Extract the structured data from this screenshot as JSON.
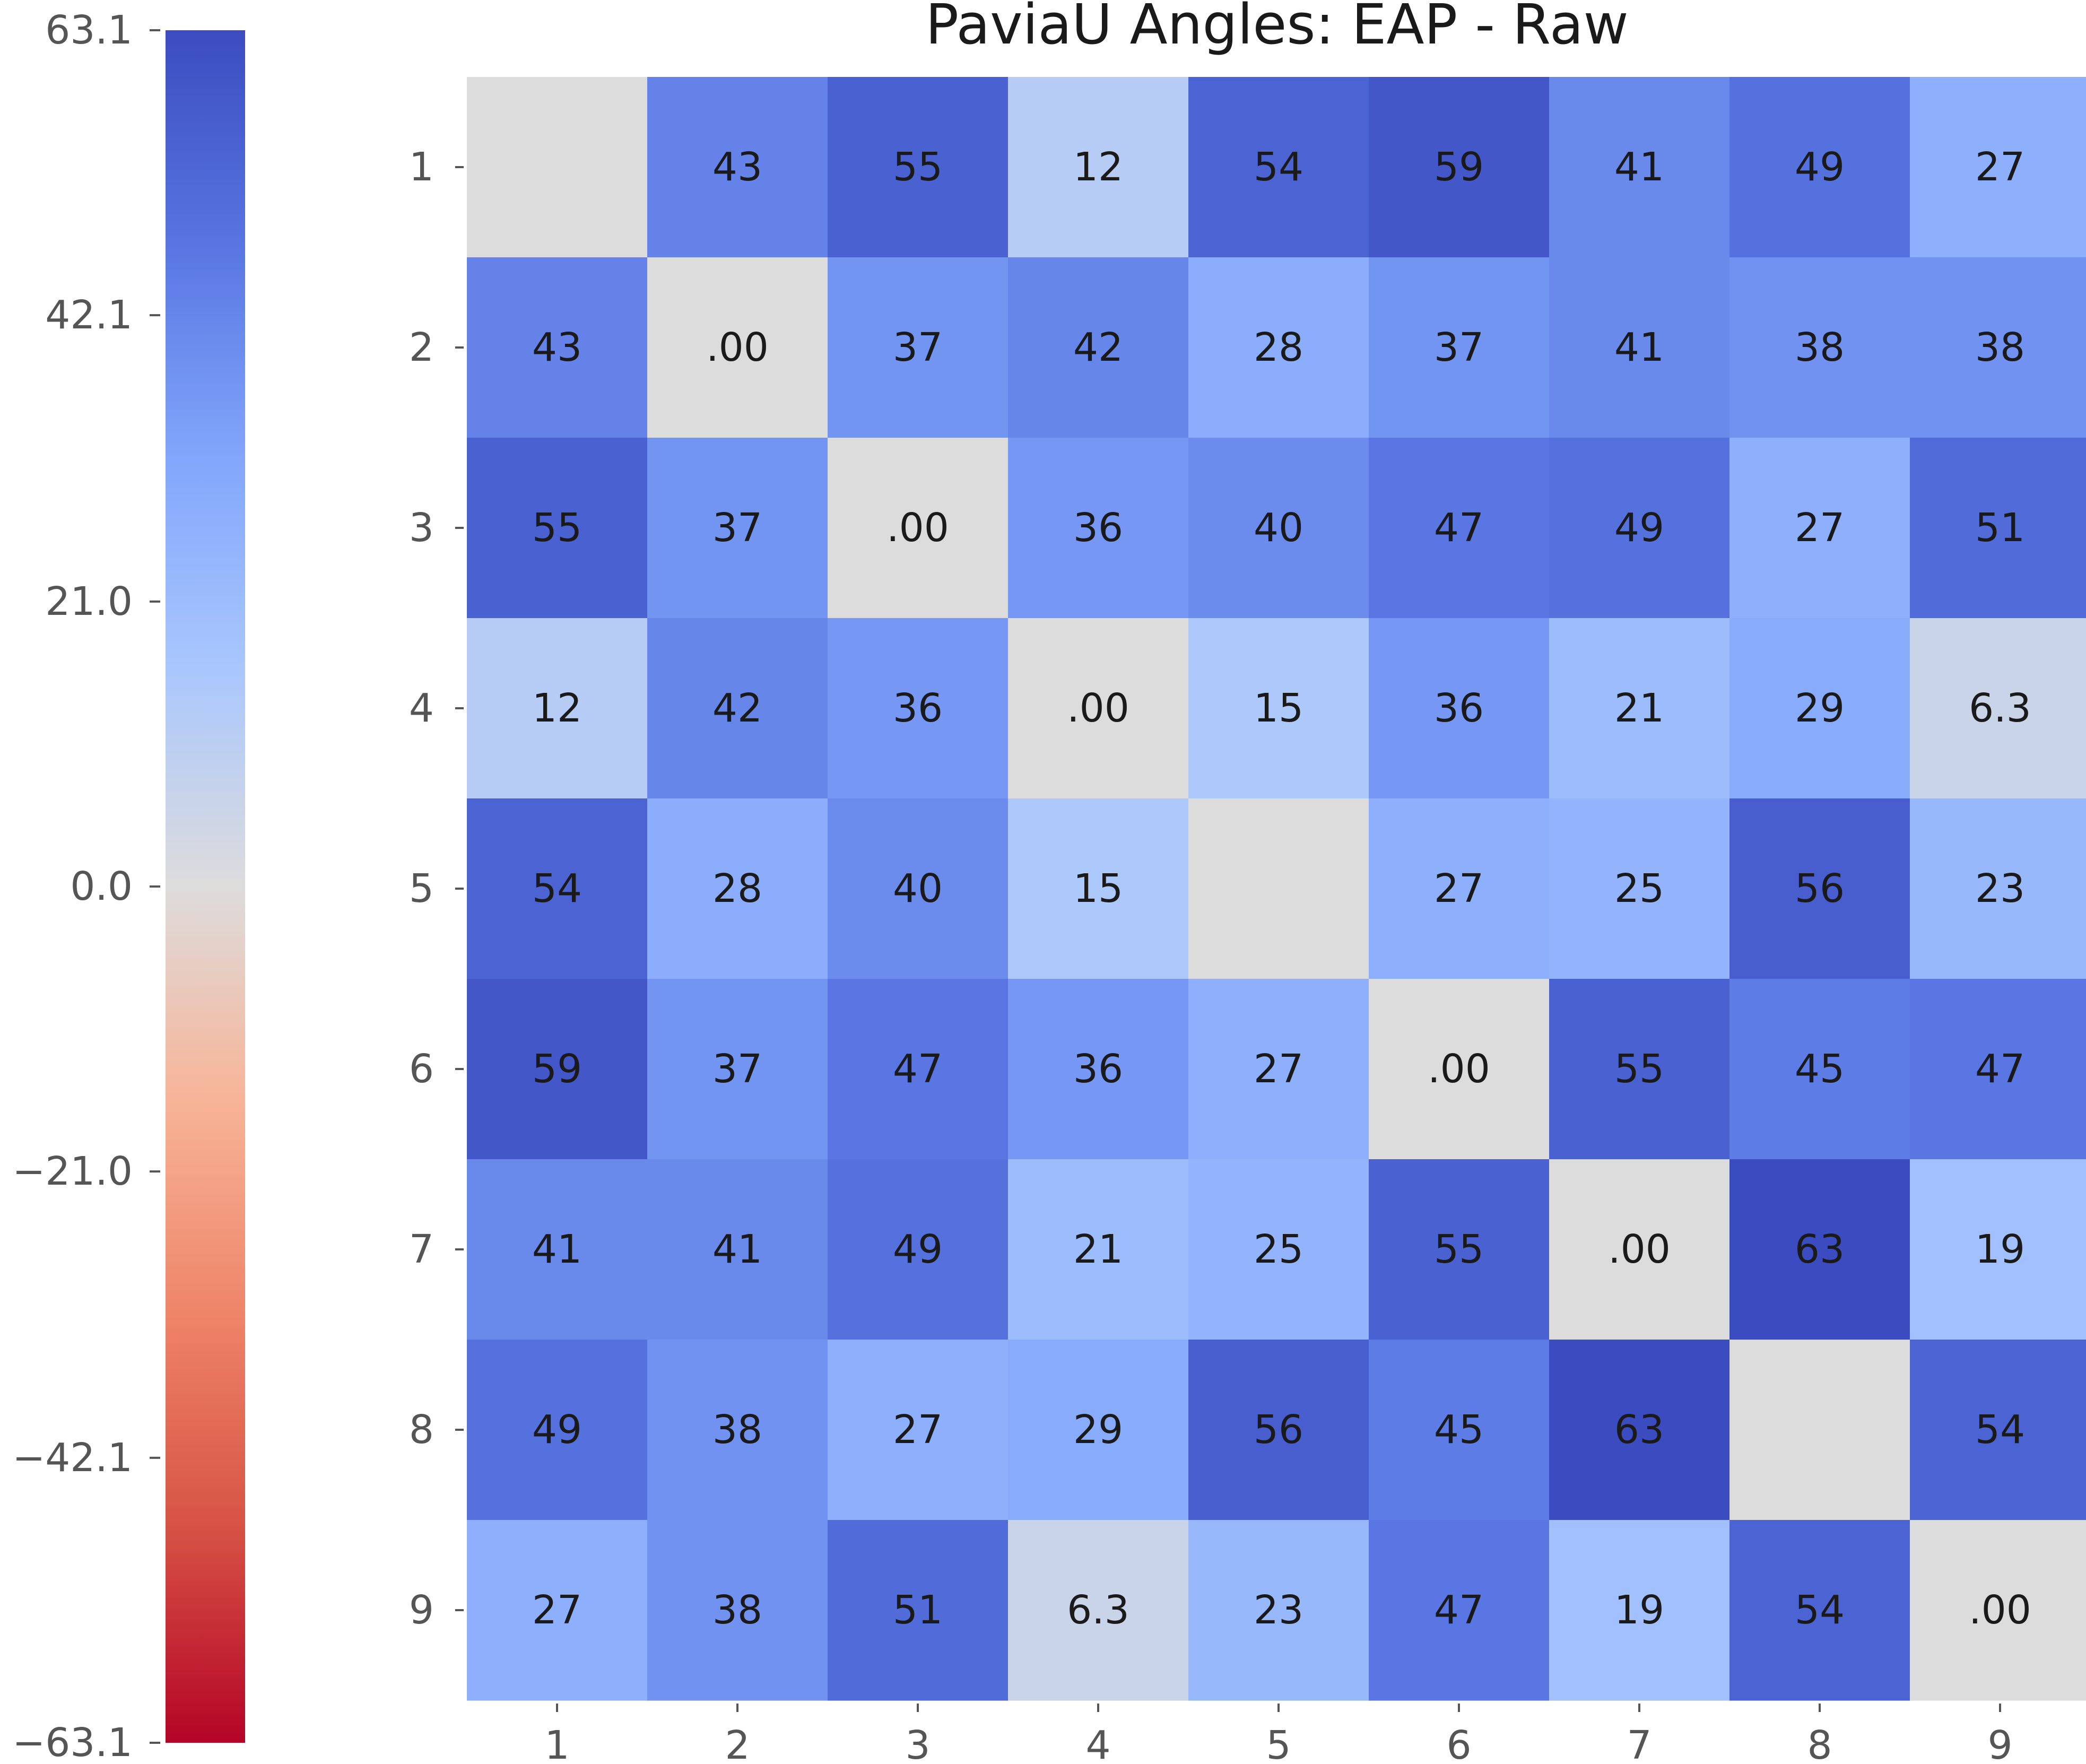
{
  "chart_data": {
    "type": "heatmap",
    "title": "PaviaU Angles: EAP - Raw",
    "xlabel": "",
    "ylabel": "",
    "x_categories": [
      "1",
      "2",
      "3",
      "4",
      "5",
      "6",
      "7",
      "8",
      "9"
    ],
    "y_categories": [
      "1",
      "2",
      "3",
      "4",
      "5",
      "6",
      "7",
      "8",
      "9"
    ],
    "values": [
      [
        null,
        43,
        55,
        12,
        54,
        59,
        41,
        49,
        27
      ],
      [
        43,
        0,
        37,
        42,
        28,
        37,
        41,
        38,
        38
      ],
      [
        55,
        37,
        0,
        36,
        40,
        47,
        49,
        27,
        51
      ],
      [
        12,
        42,
        36,
        0,
        15,
        36,
        21,
        29,
        6.3
      ],
      [
        54,
        28,
        40,
        15,
        null,
        27,
        25,
        56,
        23
      ],
      [
        59,
        37,
        47,
        36,
        27,
        0,
        55,
        45,
        47
      ],
      [
        41,
        41,
        49,
        21,
        25,
        55,
        0,
        63,
        19
      ],
      [
        49,
        38,
        27,
        29,
        56,
        45,
        63,
        null,
        54
      ],
      [
        27,
        38,
        51,
        6.3,
        23,
        47,
        19,
        54,
        0
      ]
    ],
    "cell_labels": [
      [
        "",
        "43",
        "55",
        "12",
        "54",
        "59",
        "41",
        "49",
        "27"
      ],
      [
        "43",
        ".00",
        "37",
        "42",
        "28",
        "37",
        "41",
        "38",
        "38"
      ],
      [
        "55",
        "37",
        ".00",
        "36",
        "40",
        "47",
        "49",
        "27",
        "51"
      ],
      [
        "12",
        "42",
        "36",
        ".00",
        "15",
        "36",
        "21",
        "29",
        "6.3"
      ],
      [
        "54",
        "28",
        "40",
        "15",
        "",
        "27",
        "25",
        "56",
        "23"
      ],
      [
        "59",
        "37",
        "47",
        "36",
        "27",
        ".00",
        "55",
        "45",
        "47"
      ],
      [
        "41",
        "41",
        "49",
        "21",
        "25",
        "55",
        ".00",
        "63",
        "19"
      ],
      [
        "49",
        "38",
        "27",
        "29",
        "56",
        "45",
        "63",
        "",
        "54"
      ],
      [
        "27",
        "38",
        "51",
        "6.3",
        "23",
        "47",
        "19",
        "54",
        ".00"
      ]
    ],
    "colormap": "coolwarm_r",
    "missing_color": "#dcdcdc",
    "vmin": -63.1,
    "vmax": 63.1,
    "colorbar": {
      "placement": "left",
      "tick_values": [
        63.1,
        42.1,
        21.0,
        0.0,
        -21.0,
        -42.1,
        -63.1
      ],
      "tick_labels": [
        "63.1",
        "42.1",
        "21.0",
        "0.0",
        "−21.0",
        "−42.1",
        "−63.1"
      ]
    }
  }
}
